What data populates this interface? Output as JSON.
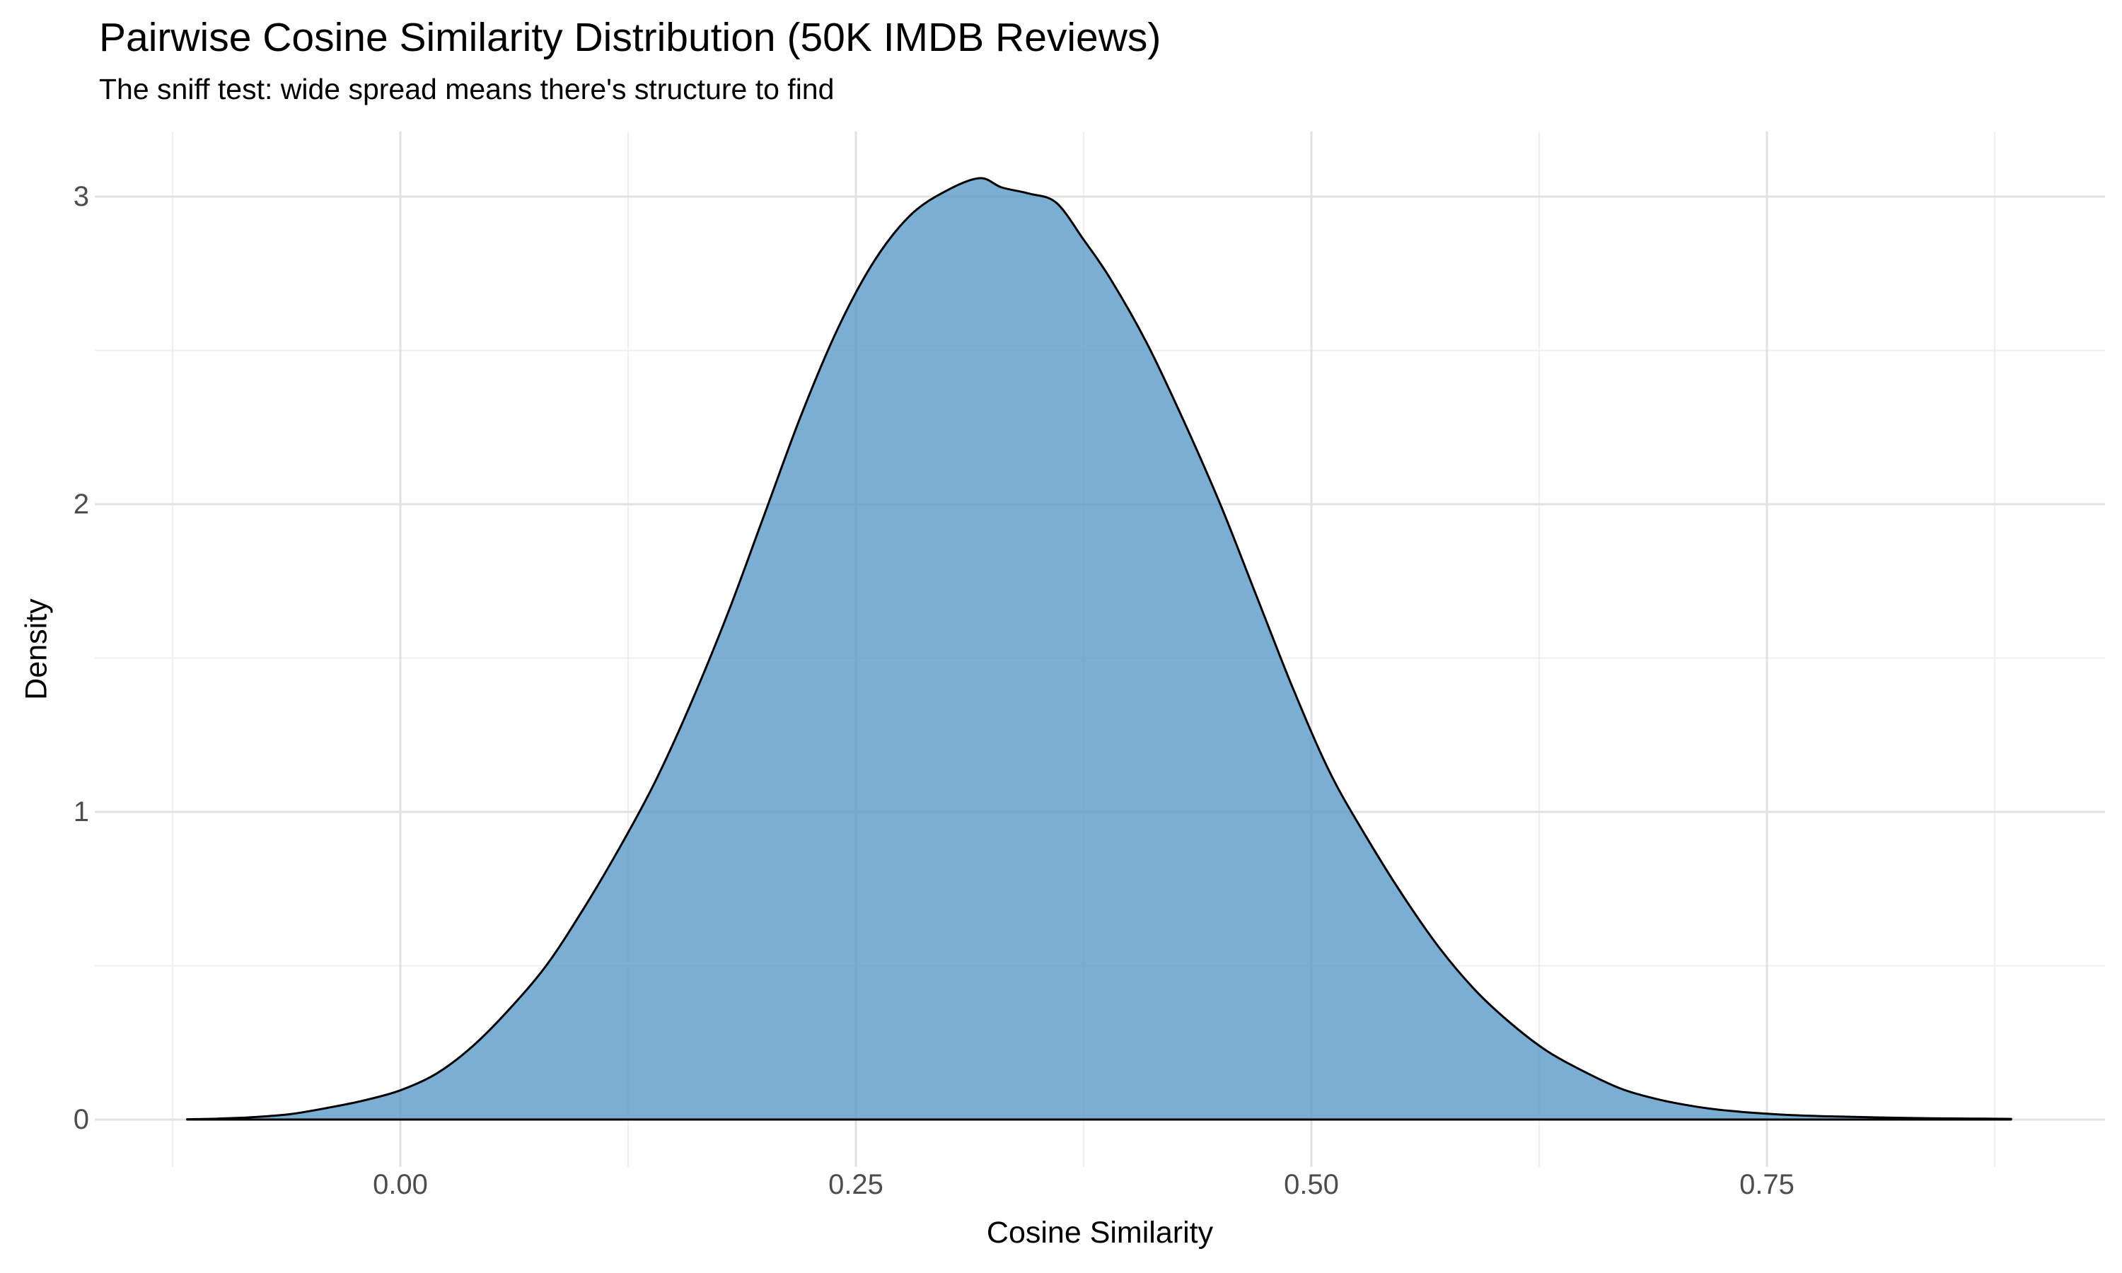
{
  "title": "Pairwise Cosine Similarity Distribution (50K IMDB Reviews)",
  "subtitle": "The sniff test: wide spread means there's structure to find",
  "axes": {
    "x": {
      "label": "Cosine Similarity",
      "ticks": [
        {
          "value": 0.0,
          "label": "0.00"
        },
        {
          "value": 0.25,
          "label": "0.25"
        },
        {
          "value": 0.5,
          "label": "0.50"
        },
        {
          "value": 0.75,
          "label": "0.75"
        }
      ],
      "minor_ticks": [
        -0.125,
        0.125,
        0.375,
        0.625,
        0.875
      ]
    },
    "y": {
      "label": "Density",
      "ticks": [
        {
          "value": 0,
          "label": "0"
        },
        {
          "value": 1,
          "label": "1"
        },
        {
          "value": 2,
          "label": "2"
        },
        {
          "value": 3,
          "label": "3"
        }
      ],
      "minor_ticks": [
        0.5,
        1.5,
        2.5
      ]
    }
  },
  "colors": {
    "background": "#ffffff",
    "fill": "rgba(90,154,200,0.8)",
    "stroke": "#000000",
    "grid_major": "#e2e2e2",
    "grid_minor": "#efefef",
    "tick_text": "#4d4d4d",
    "title_text": "#000000"
  },
  "chart_data": {
    "type": "area",
    "subtype": "density-curve",
    "title": "Pairwise Cosine Similarity Distribution (50K IMDB Reviews)",
    "subtitle": "The sniff test: wide spread means there's structure to find",
    "xlabel": "Cosine Similarity",
    "ylabel": "Density",
    "xlim": [
      -0.167,
      0.934
    ],
    "ylim": [
      0,
      3.22
    ],
    "x_ticks": [
      0.0,
      0.25,
      0.5,
      0.75
    ],
    "y_ticks": [
      0,
      1,
      2,
      3
    ],
    "grid": "on",
    "legend": "none",
    "peak": {
      "x": 0.318,
      "density": 3.06
    },
    "curve_range_x": [
      -0.117,
      0.884
    ],
    "points": [
      [
        -0.117,
        0.001
      ],
      [
        -0.1,
        0.003
      ],
      [
        -0.08,
        0.008
      ],
      [
        -0.06,
        0.018
      ],
      [
        -0.04,
        0.038
      ],
      [
        -0.02,
        0.062
      ],
      [
        0.0,
        0.095
      ],
      [
        0.02,
        0.15
      ],
      [
        0.04,
        0.24
      ],
      [
        0.06,
        0.36
      ],
      [
        0.08,
        0.5
      ],
      [
        0.1,
        0.68
      ],
      [
        0.12,
        0.88
      ],
      [
        0.14,
        1.1
      ],
      [
        0.16,
        1.36
      ],
      [
        0.18,
        1.65
      ],
      [
        0.2,
        1.97
      ],
      [
        0.22,
        2.29
      ],
      [
        0.24,
        2.57
      ],
      [
        0.26,
        2.79
      ],
      [
        0.28,
        2.94
      ],
      [
        0.3,
        3.02
      ],
      [
        0.318,
        3.06
      ],
      [
        0.33,
        3.03
      ],
      [
        0.345,
        3.01
      ],
      [
        0.36,
        2.98
      ],
      [
        0.375,
        2.86
      ],
      [
        0.39,
        2.73
      ],
      [
        0.41,
        2.52
      ],
      [
        0.43,
        2.27
      ],
      [
        0.45,
        2.0
      ],
      [
        0.47,
        1.7
      ],
      [
        0.49,
        1.4
      ],
      [
        0.51,
        1.13
      ],
      [
        0.53,
        0.92
      ],
      [
        0.55,
        0.73
      ],
      [
        0.57,
        0.56
      ],
      [
        0.59,
        0.42
      ],
      [
        0.61,
        0.31
      ],
      [
        0.63,
        0.22
      ],
      [
        0.65,
        0.155
      ],
      [
        0.67,
        0.1
      ],
      [
        0.69,
        0.066
      ],
      [
        0.71,
        0.043
      ],
      [
        0.73,
        0.028
      ],
      [
        0.755,
        0.017
      ],
      [
        0.78,
        0.011
      ],
      [
        0.81,
        0.007
      ],
      [
        0.84,
        0.004
      ],
      [
        0.865,
        0.003
      ],
      [
        0.884,
        0.002
      ]
    ]
  }
}
